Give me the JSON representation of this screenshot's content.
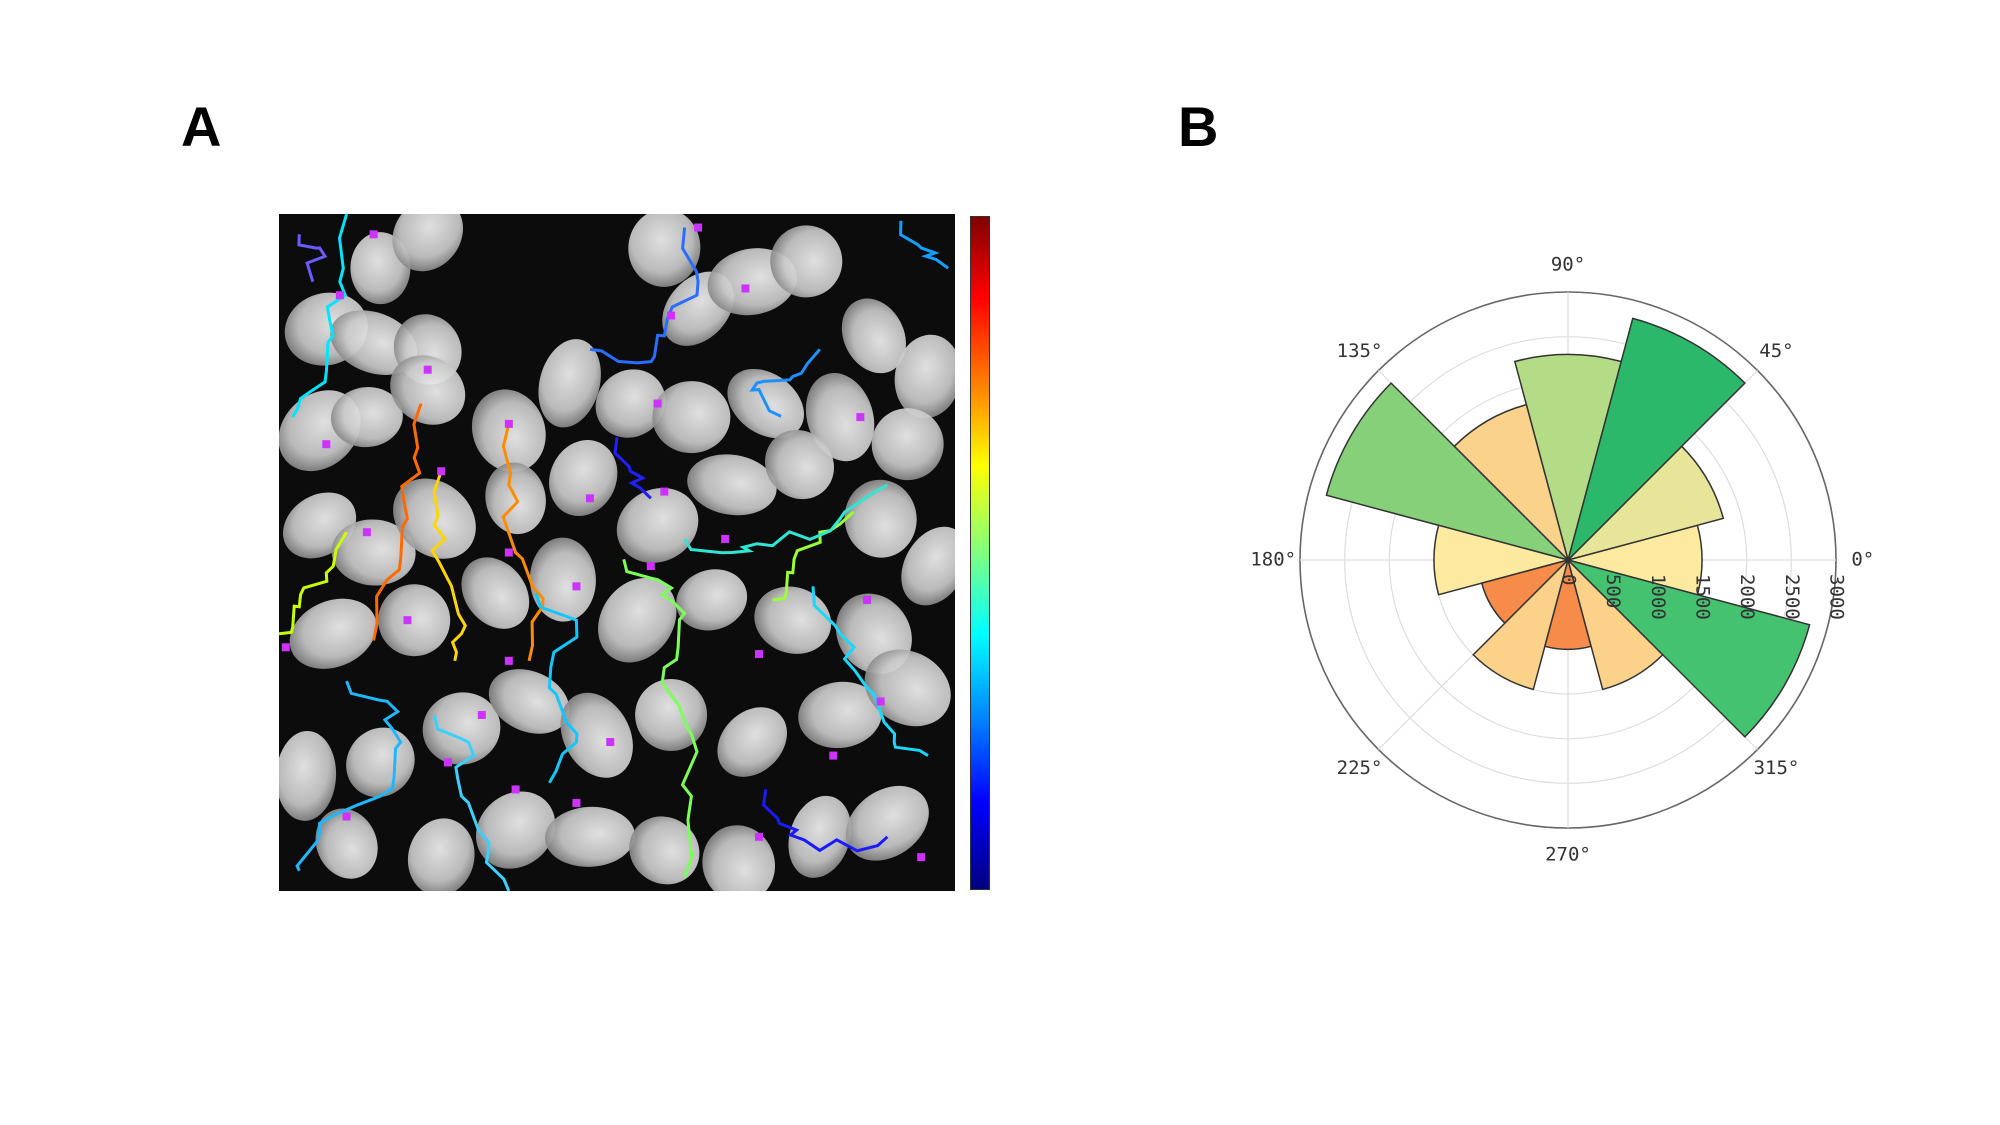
{
  "panels": {
    "a_label": "A",
    "b_label": "B"
  },
  "colors": {
    "background": "#ffffff",
    "micrograph_bg": "#0c0c0c",
    "nucleus": "#d9d9d9",
    "marker": "#cc33ff"
  },
  "micrograph": {
    "colorbar_scale": "jet",
    "nuclei_icon": "cell-nucleus-icon",
    "tracks": [
      {
        "color": "#ff6a00",
        "points": [
          [
            0.21,
            0.28
          ],
          [
            0.2,
            0.36
          ],
          [
            0.19,
            0.45
          ],
          [
            0.16,
            0.54
          ],
          [
            0.14,
            0.63
          ]
        ]
      },
      {
        "color": "#ffd500",
        "points": [
          [
            0.24,
            0.38
          ],
          [
            0.23,
            0.46
          ],
          [
            0.25,
            0.54
          ],
          [
            0.27,
            0.62
          ],
          [
            0.26,
            0.66
          ]
        ]
      },
      {
        "color": "#ff8c00",
        "points": [
          [
            0.34,
            0.31
          ],
          [
            0.34,
            0.4
          ],
          [
            0.35,
            0.5
          ],
          [
            0.39,
            0.58
          ],
          [
            0.37,
            0.66
          ]
        ]
      },
      {
        "color": "#c8ff00",
        "points": [
          [
            0.1,
            0.47
          ],
          [
            0.07,
            0.53
          ],
          [
            0.03,
            0.58
          ],
          [
            0.0,
            0.62
          ]
        ]
      },
      {
        "color": "#7dff5a",
        "points": [
          [
            0.51,
            0.51
          ],
          [
            0.56,
            0.54
          ],
          [
            0.6,
            0.59
          ],
          [
            0.57,
            0.67
          ],
          [
            0.6,
            0.75
          ],
          [
            0.61,
            0.86
          ],
          [
            0.6,
            0.98
          ]
        ]
      },
      {
        "color": "#9bff3a",
        "points": [
          [
            0.85,
            0.44
          ],
          [
            0.8,
            0.47
          ],
          [
            0.76,
            0.53
          ],
          [
            0.73,
            0.57
          ]
        ]
      },
      {
        "color": "#00e5ff",
        "points": [
          [
            0.1,
            0.0
          ],
          [
            0.09,
            0.1
          ],
          [
            0.08,
            0.18
          ],
          [
            0.05,
            0.26
          ],
          [
            0.02,
            0.3
          ]
        ]
      },
      {
        "color": "#1fb8ff",
        "points": [
          [
            0.1,
            0.69
          ],
          [
            0.16,
            0.72
          ],
          [
            0.18,
            0.78
          ],
          [
            0.15,
            0.86
          ],
          [
            0.06,
            0.9
          ],
          [
            0.03,
            0.97
          ]
        ]
      },
      {
        "color": "#3ad0ff",
        "points": [
          [
            0.23,
            0.74
          ],
          [
            0.28,
            0.78
          ],
          [
            0.27,
            0.86
          ],
          [
            0.31,
            0.94
          ],
          [
            0.34,
            1.0
          ]
        ]
      },
      {
        "color": "#2fe6d4",
        "points": [
          [
            0.6,
            0.48
          ],
          [
            0.67,
            0.5
          ],
          [
            0.73,
            0.49
          ],
          [
            0.83,
            0.45
          ],
          [
            0.9,
            0.4
          ]
        ]
      },
      {
        "color": "#1ad7ff",
        "points": [
          [
            0.79,
            0.55
          ],
          [
            0.83,
            0.62
          ],
          [
            0.87,
            0.7
          ],
          [
            0.91,
            0.78
          ],
          [
            0.96,
            0.8
          ]
        ]
      },
      {
        "color": "#2b6dff",
        "points": [
          [
            0.6,
            0.02
          ],
          [
            0.62,
            0.1
          ],
          [
            0.57,
            0.18
          ],
          [
            0.53,
            0.22
          ],
          [
            0.46,
            0.2
          ]
        ]
      },
      {
        "color": "#1e90ff",
        "points": [
          [
            0.8,
            0.2
          ],
          [
            0.76,
            0.24
          ],
          [
            0.7,
            0.26
          ],
          [
            0.74,
            0.3
          ]
        ]
      },
      {
        "color": "#1a1aff",
        "points": [
          [
            0.72,
            0.85
          ],
          [
            0.74,
            0.9
          ],
          [
            0.8,
            0.94
          ],
          [
            0.9,
            0.92
          ]
        ]
      },
      {
        "color": "#2020ff",
        "points": [
          [
            0.5,
            0.33
          ],
          [
            0.52,
            0.38
          ],
          [
            0.55,
            0.42
          ]
        ]
      },
      {
        "color": "#6a5cff",
        "points": [
          [
            0.03,
            0.03
          ],
          [
            0.06,
            0.05
          ],
          [
            0.05,
            0.1
          ]
        ]
      },
      {
        "color": "#10c8ff",
        "points": [
          [
            0.38,
            0.56
          ],
          [
            0.44,
            0.6
          ],
          [
            0.4,
            0.7
          ],
          [
            0.44,
            0.78
          ],
          [
            0.4,
            0.84
          ]
        ]
      },
      {
        "color": "#12a0ff",
        "points": [
          [
            0.92,
            0.01
          ],
          [
            0.95,
            0.05
          ],
          [
            0.99,
            0.08
          ]
        ]
      }
    ],
    "nuclei": [
      [
        0.15,
        0.08
      ],
      [
        0.22,
        0.03
      ],
      [
        0.07,
        0.17
      ],
      [
        0.14,
        0.19
      ],
      [
        0.22,
        0.2
      ],
      [
        0.57,
        0.05
      ],
      [
        0.62,
        0.14
      ],
      [
        0.7,
        0.1
      ],
      [
        0.78,
        0.07
      ],
      [
        0.88,
        0.18
      ],
      [
        0.96,
        0.24
      ],
      [
        0.06,
        0.32
      ],
      [
        0.13,
        0.3
      ],
      [
        0.22,
        0.26
      ],
      [
        0.34,
        0.32
      ],
      [
        0.43,
        0.25
      ],
      [
        0.52,
        0.28
      ],
      [
        0.61,
        0.3
      ],
      [
        0.72,
        0.28
      ],
      [
        0.83,
        0.3
      ],
      [
        0.93,
        0.34
      ],
      [
        0.06,
        0.46
      ],
      [
        0.14,
        0.5
      ],
      [
        0.23,
        0.45
      ],
      [
        0.35,
        0.42
      ],
      [
        0.45,
        0.39
      ],
      [
        0.56,
        0.46
      ],
      [
        0.67,
        0.4
      ],
      [
        0.77,
        0.37
      ],
      [
        0.89,
        0.45
      ],
      [
        0.97,
        0.52
      ],
      [
        0.08,
        0.62
      ],
      [
        0.2,
        0.6
      ],
      [
        0.32,
        0.56
      ],
      [
        0.42,
        0.54
      ],
      [
        0.53,
        0.6
      ],
      [
        0.64,
        0.57
      ],
      [
        0.76,
        0.6
      ],
      [
        0.88,
        0.62
      ],
      [
        0.04,
        0.83
      ],
      [
        0.15,
        0.81
      ],
      [
        0.27,
        0.76
      ],
      [
        0.37,
        0.72
      ],
      [
        0.47,
        0.77
      ],
      [
        0.58,
        0.74
      ],
      [
        0.7,
        0.78
      ],
      [
        0.83,
        0.74
      ],
      [
        0.93,
        0.7
      ],
      [
        0.1,
        0.93
      ],
      [
        0.24,
        0.95
      ],
      [
        0.35,
        0.91
      ],
      [
        0.46,
        0.92
      ],
      [
        0.57,
        0.94
      ],
      [
        0.68,
        0.96
      ],
      [
        0.8,
        0.92
      ],
      [
        0.9,
        0.9
      ]
    ],
    "markers": [
      [
        0.14,
        0.03
      ],
      [
        0.62,
        0.02
      ],
      [
        0.58,
        0.15
      ],
      [
        0.69,
        0.11
      ],
      [
        0.09,
        0.12
      ],
      [
        0.22,
        0.23
      ],
      [
        0.56,
        0.28
      ],
      [
        0.86,
        0.3
      ],
      [
        0.07,
        0.34
      ],
      [
        0.34,
        0.31
      ],
      [
        0.24,
        0.38
      ],
      [
        0.46,
        0.42
      ],
      [
        0.57,
        0.41
      ],
      [
        0.13,
        0.47
      ],
      [
        0.34,
        0.5
      ],
      [
        0.44,
        0.55
      ],
      [
        0.55,
        0.52
      ],
      [
        0.66,
        0.48
      ],
      [
        0.87,
        0.57
      ],
      [
        0.19,
        0.6
      ],
      [
        0.34,
        0.66
      ],
      [
        0.71,
        0.65
      ],
      [
        0.01,
        0.64
      ],
      [
        0.3,
        0.74
      ],
      [
        0.49,
        0.78
      ],
      [
        0.89,
        0.72
      ],
      [
        0.1,
        0.89
      ],
      [
        0.25,
        0.81
      ],
      [
        0.35,
        0.85
      ],
      [
        0.44,
        0.87
      ],
      [
        0.82,
        0.8
      ],
      [
        0.71,
        0.92
      ],
      [
        0.95,
        0.95
      ]
    ]
  },
  "chart_data": {
    "type": "rose",
    "title": "",
    "bin_width_deg": 30,
    "bin_centers_deg": [
      0,
      30,
      60,
      90,
      120,
      150,
      180,
      210,
      240,
      270,
      300,
      330
    ],
    "values": [
      1500,
      1800,
      2800,
      2300,
      1800,
      2800,
      1500,
      1000,
      1500,
      1000,
      1500,
      2800
    ],
    "bar_colors": [
      "#fde9a0",
      "#e6e59a",
      "#2bb86a",
      "#b4dc86",
      "#fbd28c",
      "#86d07a",
      "#fde9a0",
      "#f68b4a",
      "#fcd28a",
      "#f68b4a",
      "#fcd28a",
      "#45c270"
    ],
    "radial_ticks": [
      0,
      500,
      1000,
      1500,
      2000,
      2500,
      3000
    ],
    "radial_tick_labels": [
      "0",
      "500",
      "1000",
      "1500",
      "2000",
      "2500",
      "3000"
    ],
    "rlim": [
      0,
      3000
    ],
    "angle_ticks_deg": [
      0,
      45,
      90,
      135,
      180,
      225,
      270,
      315
    ],
    "angle_tick_labels": [
      "0°",
      "45°",
      "90°",
      "135°",
      "180°",
      "225°",
      "270°",
      "315°"
    ],
    "grid": true
  }
}
